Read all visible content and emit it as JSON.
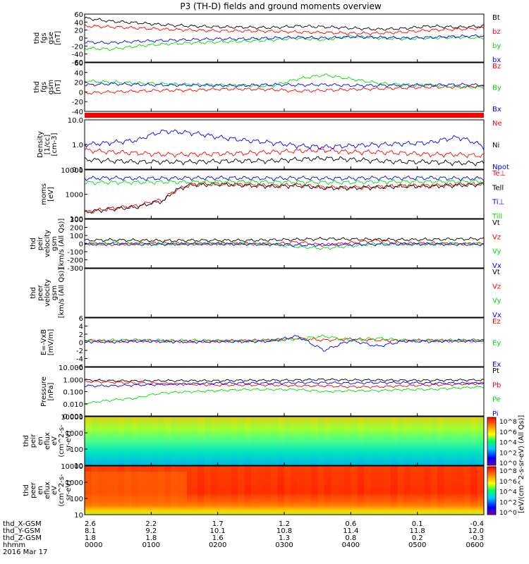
{
  "title": "P3 (TH-D) fields and ground moments overview",
  "x_ticks": [
    "0000",
    "0100",
    "0200",
    "0300",
    "0400",
    "0500",
    "0600"
  ],
  "footer": {
    "row_labels": [
      "thd_X-GSM",
      "thd_Y-GSM",
      "thd_Z-GSM",
      "hhmm",
      "2016 Mar 17"
    ],
    "x_gsm": [
      "2.6",
      "2.2",
      "1.7",
      "1.2",
      "0.6",
      "0.1",
      "-0.4"
    ],
    "y_gsm": [
      "8.1",
      "9.2",
      "10.1",
      "10.8",
      "11.4",
      "11.8",
      "12.0"
    ],
    "z_gsm": [
      "1.8",
      "1.8",
      "1.6",
      "1.3",
      "0.8",
      "0.2",
      "-0.3"
    ]
  },
  "colors": {
    "black": "#000000",
    "red": "#ff0000",
    "green": "#00dd00",
    "blue": "#0000ff"
  },
  "chart_data": [
    {
      "type": "line",
      "ylabel": [
        "thd",
        "fgs",
        "gse",
        "[nT]"
      ],
      "ylim": [
        -60,
        60
      ],
      "yticks": [
        "60",
        "40",
        "20",
        "0",
        "-20",
        "-40",
        "-60"
      ],
      "series": [
        {
          "name": "Bt",
          "color": "#000000",
          "values": [
            50,
            42,
            38,
            33,
            30,
            28,
            27,
            26,
            30,
            28,
            25,
            22,
            24,
            30,
            27,
            30
          ]
        },
        {
          "name": "bz",
          "color": "#ff0000",
          "values": [
            30,
            28,
            25,
            22,
            20,
            18,
            18,
            17,
            15,
            14,
            12,
            12,
            15,
            20,
            22,
            25
          ]
        },
        {
          "name": "by",
          "color": "#00dd00",
          "values": [
            -25,
            -28,
            -20,
            -15,
            -12,
            -10,
            -8,
            -5,
            0,
            -5,
            5,
            0,
            -2,
            0,
            2,
            0
          ]
        },
        {
          "name": "bx",
          "color": "#0000ff",
          "values": [
            -10,
            -12,
            -8,
            -6,
            -4,
            -2,
            -2,
            0,
            2,
            0,
            3,
            2,
            0,
            2,
            4,
            6
          ]
        }
      ]
    },
    {
      "type": "line",
      "ylabel": [
        "thd",
        "fgs",
        "gsm",
        "[nT]"
      ],
      "ylim": [
        -60,
        60
      ],
      "yticks": [
        "60",
        "40",
        "20",
        "0",
        "-20",
        "-40"
      ],
      "series": [
        {
          "name": "Bz",
          "color": "#ff0000",
          "values": [
            -15,
            -12,
            -10,
            -8,
            -8,
            -5,
            -5,
            -6,
            -10,
            -8,
            -6,
            -4,
            -2,
            0,
            0,
            2
          ]
        },
        {
          "name": "By",
          "color": "#00dd00",
          "values": [
            15,
            12,
            10,
            8,
            6,
            5,
            4,
            2,
            20,
            30,
            20,
            10,
            5,
            5,
            0,
            0
          ]
        },
        {
          "name": "Bx",
          "color": "#0000ff",
          "values": [
            5,
            8,
            6,
            5,
            5,
            4,
            4,
            6,
            5,
            6,
            4,
            4,
            5,
            5,
            6,
            5
          ]
        }
      ]
    },
    {
      "type": "line",
      "ylabel": [
        "Density",
        "[1/cc]",
        "[cm-3]"
      ],
      "ylim": [
        0.1,
        10
      ],
      "log": true,
      "yticks": [
        "10.0",
        "1.0",
        "0.1"
      ],
      "series": [
        {
          "name": "Ne",
          "color": "#ff0000",
          "values": [
            0.6,
            0.5,
            0.45,
            0.4,
            0.4,
            0.42,
            0.45,
            0.5,
            0.55,
            0.6,
            0.5,
            0.5,
            0.45,
            0.4,
            0.4,
            0.35
          ]
        },
        {
          "name": "Ni",
          "color": "#000000",
          "values": [
            0.25,
            0.22,
            0.2,
            0.2,
            0.2,
            0.21,
            0.22,
            0.22,
            0.25,
            0.28,
            0.25,
            0.22,
            0.2,
            0.2,
            0.18,
            0.18
          ]
        },
        {
          "name": "Npot",
          "color": "#0000ff",
          "values": [
            1.0,
            1.2,
            1.5,
            3.5,
            3.0,
            2.0,
            1.5,
            1.2,
            0.9,
            0.8,
            0.9,
            1.0,
            1.1,
            1.2,
            2.0,
            0.8
          ]
        }
      ]
    },
    {
      "type": "line",
      "ylabel": [
        "moms",
        "[eV]"
      ],
      "ylim": [
        50,
        10000
      ],
      "log": true,
      "yticks": [
        "10000",
        "1000",
        "100"
      ],
      "series": [
        {
          "name": "Te⊥",
          "color": "#ff0000",
          "values": [
            100,
            150,
            200,
            400,
            2000,
            2200,
            2000,
            1800,
            2000,
            1500,
            1500,
            1600,
            1800,
            1800,
            2000,
            2200
          ]
        },
        {
          "name": "Tell",
          "color": "#000000",
          "values": [
            100,
            140,
            180,
            350,
            2000,
            2100,
            1900,
            1700,
            1800,
            1400,
            1400,
            1500,
            1700,
            1700,
            1900,
            2100
          ]
        },
        {
          "name": "Ti⊥",
          "color": "#0000ff",
          "values": [
            4000,
            4200,
            4000,
            4000,
            4200,
            4200,
            4200,
            4000,
            4200,
            4000,
            4000,
            4200,
            4200,
            4200,
            4000,
            4000
          ]
        },
        {
          "name": "Till",
          "color": "#00dd00",
          "values": [
            2500,
            2600,
            2600,
            2700,
            2700,
            2800,
            2800,
            2700,
            2700,
            2600,
            2600,
            2800,
            2800,
            2800,
            2800,
            2900
          ]
        }
      ]
    },
    {
      "type": "line",
      "ylabel": [
        "thd",
        "peir",
        "velocity",
        "gsm",
        "[km/s (All Qs)]"
      ],
      "ylim": [
        -300,
        300
      ],
      "yticks": [
        "300",
        "200",
        "100",
        "0",
        "-100",
        "-200",
        "-300"
      ],
      "series": [
        {
          "name": "Vt",
          "color": "#000000",
          "values": [
            40,
            45,
            40,
            35,
            40,
            40,
            38,
            45,
            50,
            60,
            55,
            50,
            48,
            50,
            55,
            60
          ]
        },
        {
          "name": "Vz",
          "color": "#ff0000",
          "values": [
            0,
            -10,
            0,
            5,
            -5,
            0,
            0,
            -10,
            20,
            -20,
            10,
            40,
            0,
            5,
            -5,
            0
          ]
        },
        {
          "name": "Vy",
          "color": "#00dd00",
          "values": [
            0,
            10,
            0,
            -5,
            0,
            5,
            0,
            0,
            -40,
            -60,
            -30,
            0,
            -10,
            -5,
            0,
            0
          ]
        },
        {
          "name": "Vx",
          "color": "#0000ff",
          "values": [
            -10,
            -5,
            -10,
            -8,
            -5,
            -5,
            -6,
            -10,
            -20,
            -15,
            -10,
            -10,
            -5,
            -5,
            -10,
            -10
          ]
        }
      ]
    },
    {
      "type": "line",
      "ylabel": [
        "thd",
        "peer",
        "velocity",
        "gsm",
        "[km/s (All Qs)]"
      ],
      "ylim": [
        -300,
        300
      ],
      "yticks": [],
      "series": [
        {
          "name": "Vt",
          "color": "#000000",
          "values": []
        },
        {
          "name": "Vz",
          "color": "#ff0000",
          "values": []
        },
        {
          "name": "Vy",
          "color": "#00dd00",
          "values": []
        },
        {
          "name": "Vx",
          "color": "#0000ff",
          "values": []
        }
      ]
    },
    {
      "type": "line",
      "ylabel": [
        "E=-VxB",
        "[mV/m]"
      ],
      "ylim": [
        -6,
        6
      ],
      "yticks": [
        "6",
        "4",
        "2",
        "0",
        "-2",
        "-4",
        "-6"
      ],
      "series": [
        {
          "name": "Ez",
          "color": "#ff0000",
          "values": [
            0.5,
            0.2,
            0.4,
            0.3,
            0.2,
            0.3,
            0.4,
            0.5,
            1.0,
            0.5,
            0.8,
            0.5,
            0.4,
            0.5,
            0.3,
            0.4
          ]
        },
        {
          "name": "Ey",
          "color": "#00dd00",
          "values": [
            0.3,
            0.5,
            0.6,
            0.4,
            0.5,
            0.4,
            0.3,
            0.5,
            0.8,
            1.5,
            0.5,
            1.0,
            0.5,
            0.4,
            0.5,
            0.6
          ]
        },
        {
          "name": "Ex",
          "color": "#0000ff",
          "values": [
            0.2,
            0.1,
            0.3,
            0.2,
            0.1,
            0.2,
            0.2,
            0.3,
            1.5,
            -2,
            0.5,
            -1,
            0.3,
            0.2,
            0.4,
            0.3
          ]
        }
      ]
    },
    {
      "type": "line",
      "ylabel": [
        "Pressure",
        "[nPa]"
      ],
      "ylim": [
        0.001,
        10
      ],
      "log": true,
      "yticks": [
        "10.000",
        "1.000",
        "0.100",
        "0.010",
        "0.001"
      ],
      "series": [
        {
          "name": "Pt",
          "color": "#000000",
          "values": [
            0.9,
            0.8,
            0.75,
            0.8,
            0.8,
            0.8,
            0.85,
            0.85,
            0.9,
            1.0,
            0.9,
            0.9,
            0.85,
            0.85,
            0.9,
            0.9
          ]
        },
        {
          "name": "Pb",
          "color": "#ff0000",
          "values": [
            0.7,
            0.6,
            0.5,
            0.45,
            0.4,
            0.35,
            0.35,
            0.35,
            0.3,
            0.3,
            0.25,
            0.25,
            0.3,
            0.35,
            0.4,
            0.5
          ]
        },
        {
          "name": "Pe",
          "color": "#00dd00",
          "values": [
            0.01,
            0.02,
            0.03,
            0.08,
            0.1,
            0.12,
            0.15,
            0.15,
            0.15,
            0.1,
            0.12,
            0.12,
            0.15,
            0.15,
            0.2,
            0.25
          ]
        },
        {
          "name": "Pi",
          "color": "#0000ff",
          "values": [
            0.3,
            0.3,
            0.35,
            0.4,
            0.45,
            0.5,
            0.5,
            0.5,
            0.55,
            0.55,
            0.5,
            0.55,
            0.55,
            0.5,
            0.5,
            0.5
          ]
        }
      ]
    },
    {
      "type": "heatmap",
      "ylabel": [
        "thd",
        "peir",
        "en",
        "eflux",
        "eV",
        "(cm^2-s-",
        "sr-eV)"
      ],
      "ylim": [
        5,
        30000
      ],
      "log": true,
      "yticks": [
        "10000",
        "1000",
        "100",
        "10"
      ],
      "colorbar": {
        "ticks": [
          "10^8",
          "10^6",
          "10^4",
          "10^2",
          "10^0"
        ]
      }
    },
    {
      "type": "heatmap",
      "ylabel": [
        "thd",
        "peer",
        "en",
        "eflux",
        "eV",
        "(cm^2-s-",
        "sr-eV)"
      ],
      "ylim": [
        5,
        30000
      ],
      "log": true,
      "yticks": [
        "10000",
        "1000",
        "100",
        "10"
      ],
      "colorbar": {
        "ticks": [
          "10^8",
          "10^6",
          "10^4",
          "10^2",
          "10^0"
        ]
      }
    }
  ],
  "colorbar_label": "[eV/(cm^2-s-sr-eV) (All Qs)]"
}
